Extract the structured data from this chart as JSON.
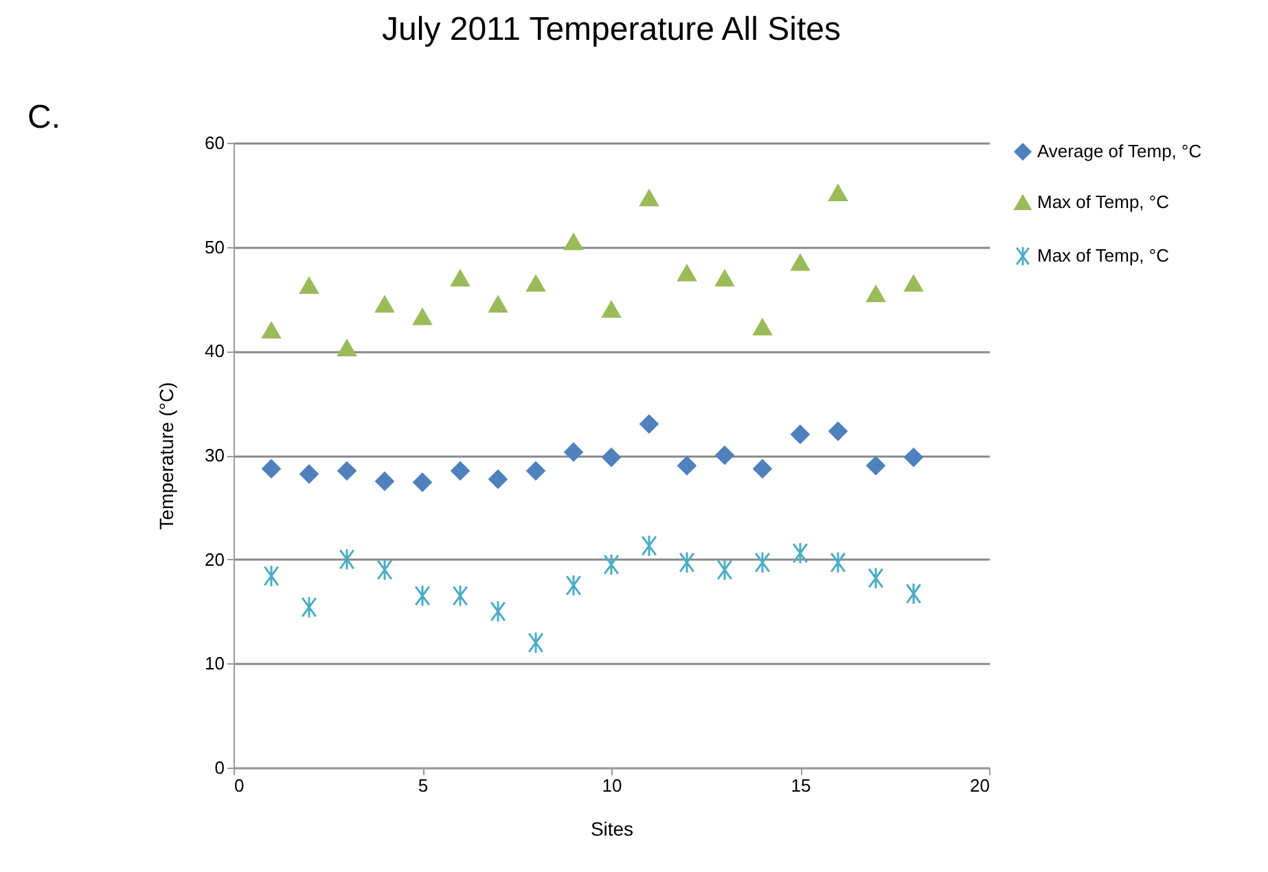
{
  "chart_data": {
    "type": "scatter",
    "title": "July  2011 Temperature All Sites",
    "xlabel": "Sites",
    "ylabel": "Temperature  (°C)",
    "annotations": [
      "C."
    ],
    "x": [
      1,
      2,
      3,
      4,
      5,
      6,
      7,
      8,
      9,
      10,
      11,
      12,
      13,
      14,
      15,
      16,
      17,
      18
    ],
    "series": [
      {
        "name": "Average of Temp, °C",
        "color": "#4f81bd",
        "marker": "diamond",
        "values": [
          28.7,
          28.2,
          28.5,
          27.5,
          27.4,
          28.5,
          27.7,
          28.5,
          30.3,
          29.8,
          33,
          29,
          30,
          28.7,
          32,
          32.3,
          29,
          29.8
        ]
      },
      {
        "name": "Max of Temp, °C",
        "color": "#9bbb59",
        "marker": "triangle",
        "values": [
          42,
          46.3,
          40.3,
          44.5,
          43.3,
          47,
          44.5,
          46.5,
          50.5,
          44,
          54.7,
          47.5,
          47,
          42.3,
          48.5,
          55.2,
          45.5,
          46.5
        ]
      },
      {
        "name": "Max of Temp, °C",
        "color": "#4bacc6",
        "marker": "cross",
        "values": [
          18.4,
          15.4,
          20,
          19,
          16.5,
          16.5,
          15,
          12,
          17.5,
          19.5,
          21.3,
          19.7,
          19,
          19.7,
          20.6,
          19.7,
          18.2,
          16.7
        ]
      }
    ],
    "xlim": [
      0,
      20
    ],
    "xticks": [
      0,
      5,
      10,
      15,
      20
    ],
    "ylim": [
      0,
      60
    ],
    "yticks": [
      0,
      10,
      20,
      30,
      40,
      50,
      60
    ],
    "grid": "y",
    "legend": "right"
  }
}
